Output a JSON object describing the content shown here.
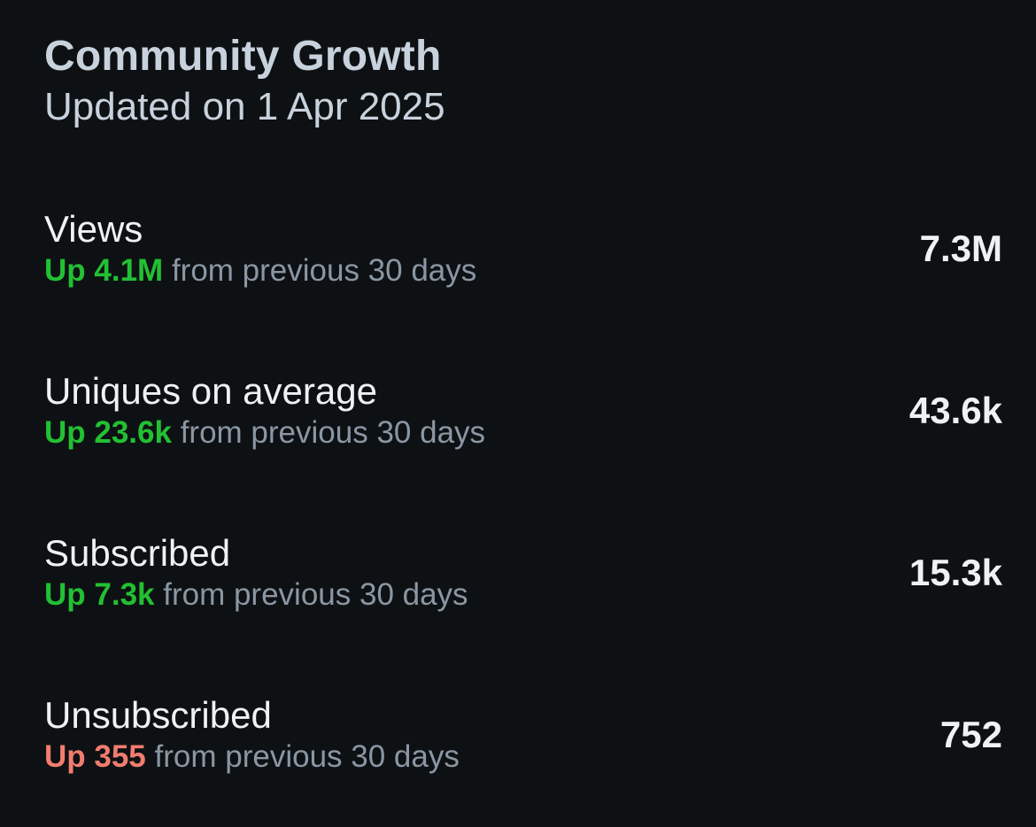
{
  "header": {
    "title": "Community Growth",
    "updated": "Updated on 1 Apr 2025"
  },
  "colors": {
    "background": "#0e1114",
    "positive": "#22c033",
    "negative": "#f27d6e",
    "muted": "#8a97a3",
    "text": "#eef2f5"
  },
  "stats": [
    {
      "label": "Views",
      "delta": "Up 4.1M",
      "delta_tone": "good",
      "period": "from previous 30 days",
      "value": "7.3M"
    },
    {
      "label": "Uniques on average",
      "delta": "Up 23.6k",
      "delta_tone": "good",
      "period": "from previous 30 days",
      "value": "43.6k"
    },
    {
      "label": "Subscribed",
      "delta": "Up 7.3k",
      "delta_tone": "good",
      "period": "from previous 30 days",
      "value": "15.3k"
    },
    {
      "label": "Unsubscribed",
      "delta": "Up 355",
      "delta_tone": "bad",
      "period": "from previous 30 days",
      "value": "752"
    }
  ]
}
